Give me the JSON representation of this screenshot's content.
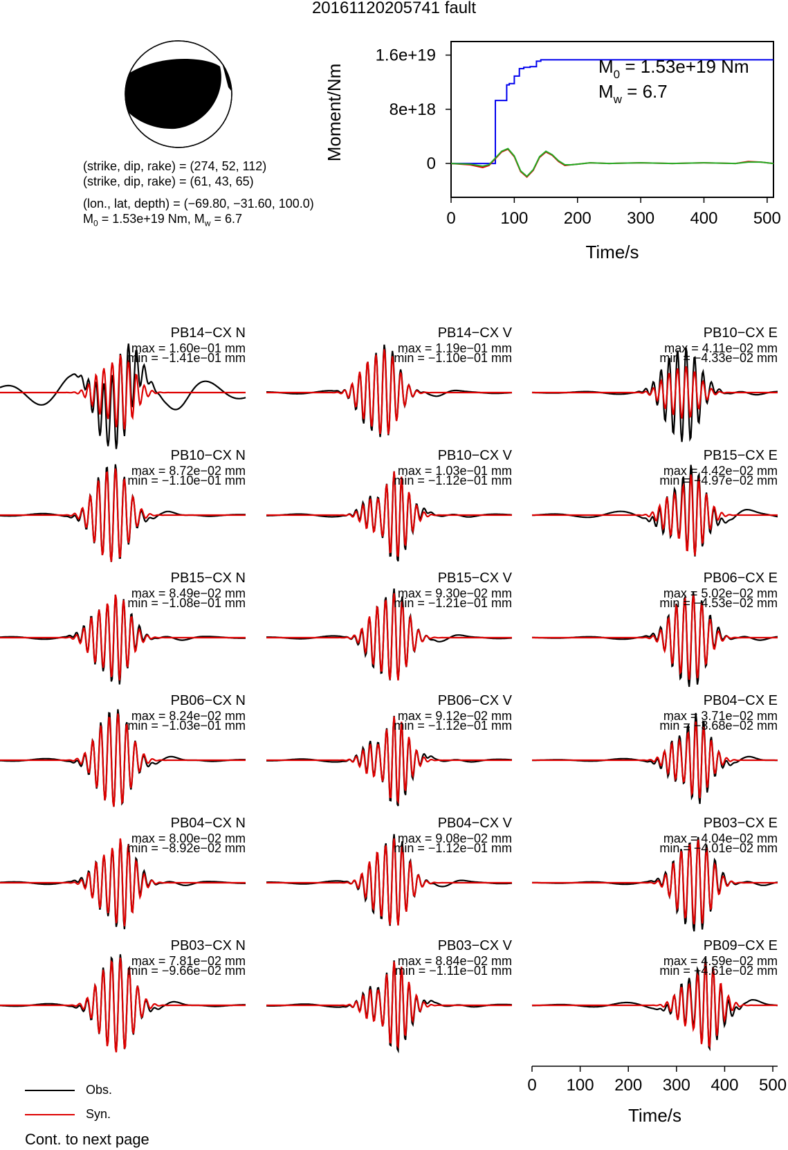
{
  "title": "20161120205741 fault",
  "mechanism": {
    "line1": "(strike, dip, rake) = (274, 52, 112)",
    "line2": "(strike, dip, rake) = (61, 43, 65)",
    "line3": "(lon., lat, depth) = (−69.80, −31.60, 100.0)",
    "line4_m0": "M",
    "line4_sub": "0",
    "line4_rest": " = 1.53e+19 Nm, M",
    "line4_sub2": "w",
    "line4_end": " = 6.7"
  },
  "chart_data": [
    {
      "type": "line",
      "name": "moment-rate",
      "ylabel": "Moment/Nm",
      "xlabel": "Time/s",
      "xlim": [
        0,
        510
      ],
      "ylim": [
        -5e+18,
        1.8e+19
      ],
      "x_ticks": [
        0,
        100,
        200,
        300,
        400,
        500
      ],
      "y_ticks": [
        0,
        8e+18,
        1.6e+19
      ],
      "y_tick_labels": [
        "0",
        "8e+18",
        "1.6e+19"
      ],
      "annotation_m0": "= 1.53e+19 Nm",
      "annotation_mw": "= 6.7",
      "annotation_m0_sym": "M",
      "annotation_m0_sub": "0",
      "annotation_mw_sym": "M",
      "annotation_mw_sub": "w",
      "series": [
        {
          "color": "#0000ee",
          "x": [
            0,
            65,
            70,
            70,
            88,
            88,
            92,
            92,
            100,
            100,
            108,
            108,
            115,
            115,
            125,
            125,
            135,
            135,
            142,
            142,
            510
          ],
          "y": [
            0,
            0,
            0,
            9.3e+18,
            9.3e+18,
            1.16e+19,
            1.16e+19,
            1.18e+19,
            1.18e+19,
            1.29e+19,
            1.29e+19,
            1.4e+19,
            1.4e+19,
            1.42e+19,
            1.42e+19,
            1.43e+19,
            1.43e+19,
            1.51e+19,
            1.51e+19,
            1.53e+19,
            1.53e+19
          ]
        },
        {
          "color": "#dd0000",
          "x": [
            0,
            30,
            50,
            60,
            70,
            80,
            90,
            100,
            110,
            120,
            130,
            140,
            150,
            160,
            170,
            180,
            190,
            200,
            220,
            250,
            300,
            350,
            400,
            450,
            470,
            490,
            510
          ],
          "y": [
            0,
            -2e+17,
            -6e+17,
            -3e+17,
            7e+17,
            1.7e+18,
            2.1e+18,
            1e+18,
            -1.2e+18,
            -2e+18,
            -1e+18,
            9e+17,
            1.7e+18,
            1.2e+18,
            3e+17,
            -3e+17,
            -2e+17,
            -1e+17,
            1e+17,
            0.0,
            1e+17,
            0.0,
            1e+17,
            0.0,
            3e+17,
            2e+17,
            0.0
          ]
        },
        {
          "color": "#22aa22",
          "x": [
            0,
            30,
            50,
            60,
            70,
            80,
            90,
            100,
            110,
            120,
            130,
            140,
            150,
            160,
            170,
            180,
            190,
            200,
            220,
            250,
            300,
            350,
            400,
            450,
            470,
            490,
            510
          ],
          "y": [
            0,
            -1e+17,
            -4e+17,
            -2e+17,
            8e+17,
            1.8e+18,
            2.2e+18,
            1.1e+18,
            -1.1e+18,
            -1.9e+18,
            -9e+17,
            1e+18,
            1.8e+18,
            1.3e+18,
            4e+17,
            -2e+17,
            -2e+17,
            -1e+17,
            1e+17,
            0.0,
            1e+17,
            0.0,
            1e+17,
            0.0,
            2e+17,
            2e+17,
            0.0
          ]
        }
      ]
    },
    {
      "type": "line",
      "name": "waveforms",
      "xlabel": "Time/s",
      "xlim": [
        0,
        510
      ],
      "x_ticks": [
        0,
        100,
        200,
        300,
        400,
        500
      ],
      "legend": [
        "Obs.",
        "Syn."
      ],
      "legend_colors": [
        "#000000",
        "#dd0000"
      ],
      "panels": [
        {
          "col": 0,
          "row": 0,
          "station": "PB14−CX N",
          "max": "max = 1.60e−01 mm",
          "min": "min = −1.41e−01 mm",
          "center": 250,
          "obs_amp": 1.0,
          "syn_amp": 0.82,
          "pre": 0.45,
          "seed": 1
        },
        {
          "col": 1,
          "row": 0,
          "station": "PB14−CX V",
          "max": "max = 1.19e−01 mm",
          "min": "min = −1.10e−01 mm",
          "center": 245,
          "obs_amp": 1.0,
          "syn_amp": 0.93,
          "pre": 0.05,
          "seed": 2
        },
        {
          "col": 2,
          "row": 0,
          "station": "PB10−CX E",
          "max": "max = 4.11e−02 mm",
          "min": "min = −4.33e−02 mm",
          "center": 320,
          "obs_amp": 1.0,
          "syn_amp": 0.55,
          "pre": 0.05,
          "seed": 3
        },
        {
          "col": 0,
          "row": 1,
          "station": "PB10−CX N",
          "max": "max = 8.72e−02 mm",
          "min": "min = −1.10e−01 mm",
          "center": 240,
          "obs_amp": 1.0,
          "syn_amp": 0.95,
          "pre": 0.05,
          "seed": 4
        },
        {
          "col": 1,
          "row": 1,
          "station": "PB10−CX V",
          "max": "max = 1.03e−01 mm",
          "min": "min = −1.12e−01 mm",
          "center": 265,
          "obs_amp": 1.0,
          "syn_amp": 0.95,
          "pre": 0.05,
          "seed": 5
        },
        {
          "col": 2,
          "row": 1,
          "station": "PB15−CX E",
          "max": "max = 4.42e−02 mm",
          "min": "min = −4.97e−02 mm",
          "center": 330,
          "obs_amp": 1.0,
          "syn_amp": 0.9,
          "pre": 0.12,
          "seed": 6
        },
        {
          "col": 0,
          "row": 2,
          "station": "PB15−CX N",
          "max": "max = 8.49e−02 mm",
          "min": "min = −1.08e−01 mm",
          "center": 240,
          "obs_amp": 1.0,
          "syn_amp": 0.95,
          "pre": 0.05,
          "seed": 7
        },
        {
          "col": 1,
          "row": 2,
          "station": "PB15−CX V",
          "max": "max = 9.30e−02 mm",
          "min": "min = −1.21e−01 mm",
          "center": 265,
          "obs_amp": 1.0,
          "syn_amp": 0.95,
          "pre": 0.05,
          "seed": 8
        },
        {
          "col": 2,
          "row": 2,
          "station": "PB06−CX E",
          "max": "max = 5.02e−02 mm",
          "min": "min = −4.53e−02 mm",
          "center": 335,
          "obs_amp": 1.0,
          "syn_amp": 0.9,
          "pre": 0.05,
          "seed": 9
        },
        {
          "col": 0,
          "row": 3,
          "station": "PB06−CX N",
          "max": "max = 8.24e−02 mm",
          "min": "min = −1.03e−01 mm",
          "center": 245,
          "obs_amp": 1.0,
          "syn_amp": 0.95,
          "pre": 0.05,
          "seed": 10
        },
        {
          "col": 1,
          "row": 3,
          "station": "PB06−CX V",
          "max": "max = 9.12e−02 mm",
          "min": "min = −1.12e−01 mm",
          "center": 265,
          "obs_amp": 1.0,
          "syn_amp": 0.95,
          "pre": 0.05,
          "seed": 11
        },
        {
          "col": 2,
          "row": 3,
          "station": "PB04−CX E",
          "max": "max = 3.71e−02 mm",
          "min": "min = −3.68e−02 mm",
          "center": 340,
          "obs_amp": 1.0,
          "syn_amp": 0.85,
          "pre": 0.05,
          "seed": 12
        },
        {
          "col": 0,
          "row": 4,
          "station": "PB04−CX N",
          "max": "max = 8.00e−02 mm",
          "min": "min = −8.92e−02 mm",
          "center": 250,
          "obs_amp": 1.0,
          "syn_amp": 0.97,
          "pre": 0.05,
          "seed": 13
        },
        {
          "col": 1,
          "row": 4,
          "station": "PB04−CX V",
          "max": "max = 9.08e−02 mm",
          "min": "min = −1.12e−01 mm",
          "center": 265,
          "obs_amp": 1.0,
          "syn_amp": 0.95,
          "pre": 0.05,
          "seed": 14
        },
        {
          "col": 2,
          "row": 4,
          "station": "PB03−CX E",
          "max": "max = 4.04e−02 mm",
          "min": "min = −4.01e−02 mm",
          "center": 345,
          "obs_amp": 1.0,
          "syn_amp": 0.9,
          "pre": 0.05,
          "seed": 15
        },
        {
          "col": 0,
          "row": 5,
          "station": "PB03−CX N",
          "max": "max = 7.81e−02 mm",
          "min": "min = −9.66e−02 mm",
          "center": 250,
          "obs_amp": 1.0,
          "syn_amp": 0.97,
          "pre": 0.05,
          "seed": 16
        },
        {
          "col": 1,
          "row": 5,
          "station": "PB03−CX V",
          "max": "max = 8.84e−02 mm",
          "min": "min = −1.11e−01 mm",
          "center": 265,
          "obs_amp": 1.0,
          "syn_amp": 0.95,
          "pre": 0.05,
          "seed": 17
        },
        {
          "col": 2,
          "row": 5,
          "station": "PB09−CX E",
          "max": "max = 4.59e−02 mm",
          "min": "min = −4.61e−02 mm",
          "center": 360,
          "obs_amp": 1.0,
          "syn_amp": 0.95,
          "pre": 0.1,
          "seed": 18
        }
      ]
    }
  ],
  "footer": "Cont. to next page"
}
